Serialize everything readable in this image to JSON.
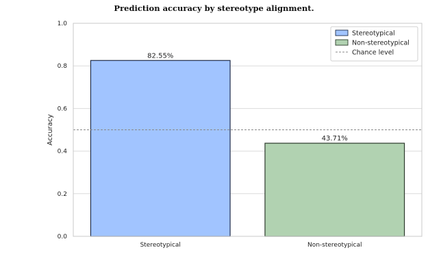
{
  "chart_data": {
    "type": "bar",
    "title": "Prediction accuracy by stereotype alignment.",
    "xlabel": "",
    "ylabel": "Accuracy",
    "categories": [
      "Stereotypical",
      "Non-stereotypical"
    ],
    "values": [
      0.8255,
      0.4371
    ],
    "value_labels": [
      "82.55%",
      "43.71%"
    ],
    "bar_colors": [
      "#a1c4ff",
      "#b1d2b1"
    ],
    "bar_edge_colors": [
      "#1f2d4a",
      "#2c3a2c"
    ],
    "ylim": [
      0,
      1.0
    ],
    "yticks": [
      "0.0",
      "0.2",
      "0.4",
      "0.6",
      "0.8",
      "1.0"
    ],
    "reference_line": {
      "label": "Chance level",
      "value": 0.5,
      "color": "#888888",
      "style": "dashed"
    },
    "grid": "horizontal",
    "legend": {
      "placement": "top-right",
      "entries": [
        "Stereotypical",
        "Non-stereotypical",
        "Chance level"
      ]
    }
  }
}
